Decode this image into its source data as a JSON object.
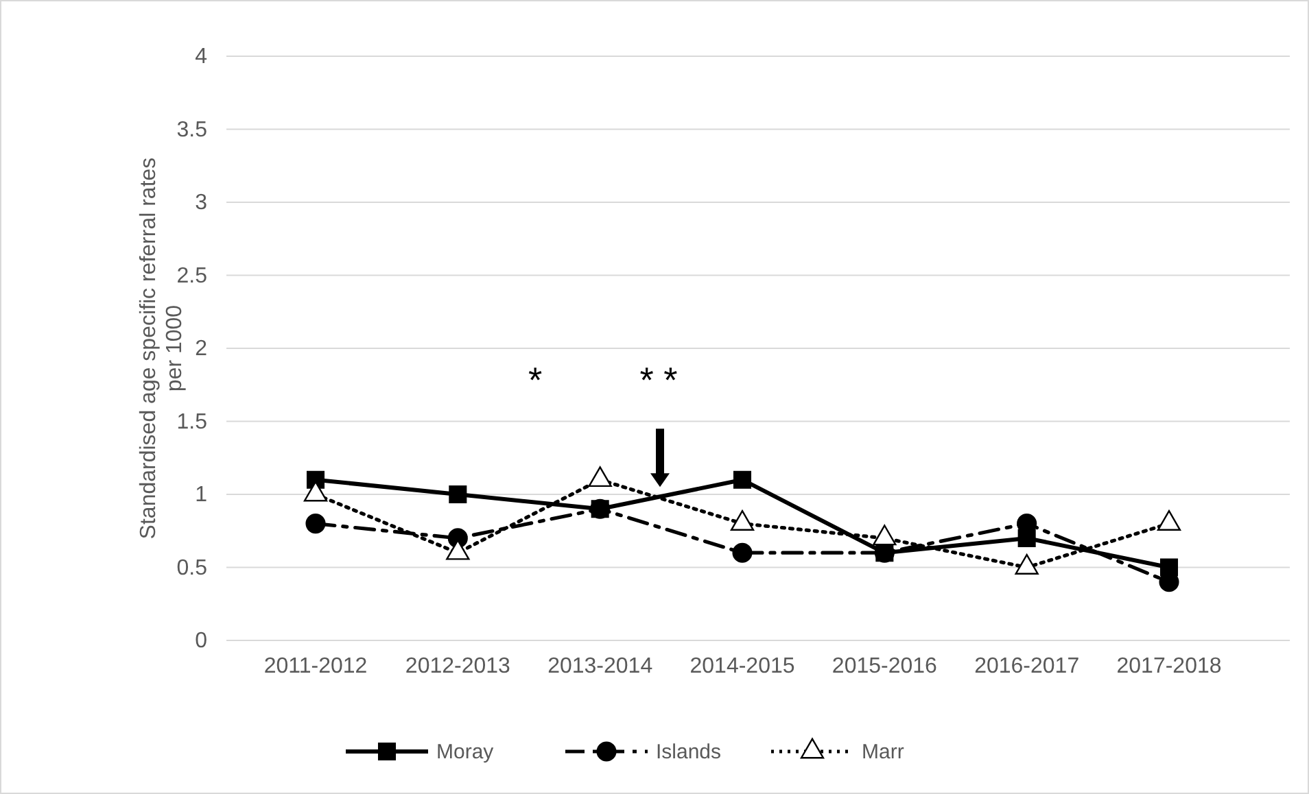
{
  "chart_data": {
    "type": "line",
    "ylabel": "Standardised age specific referral rates per 1000",
    "categories": [
      "2011-2012",
      "2012-2013",
      "2013-2014",
      "2014-2015",
      "2015-2016",
      "2016-2017",
      "2017-2018"
    ],
    "series": [
      {
        "name": "Moray",
        "color": "#000000",
        "marker": "square",
        "line_style": "solid",
        "values": [
          1.1,
          1.0,
          0.9,
          1.1,
          0.6,
          0.7,
          0.5
        ]
      },
      {
        "name": "Islands",
        "color": "#000000",
        "marker": "circle",
        "line_style": "dashed",
        "values": [
          0.8,
          0.7,
          0.9,
          0.6,
          0.6,
          0.8,
          0.4
        ]
      },
      {
        "name": "Marr",
        "color": "#000000",
        "marker": "triangle",
        "line_style": "dotted",
        "values": [
          1.0,
          0.6,
          1.1,
          0.8,
          0.7,
          0.5,
          0.8
        ]
      }
    ],
    "ylim": [
      0,
      4
    ],
    "yticks": [
      0,
      0.5,
      1,
      1.5,
      2,
      2.5,
      3,
      3.5,
      4
    ],
    "grid": "y",
    "legend": "bottom",
    "annotations": [
      "*",
      "* *"
    ]
  }
}
